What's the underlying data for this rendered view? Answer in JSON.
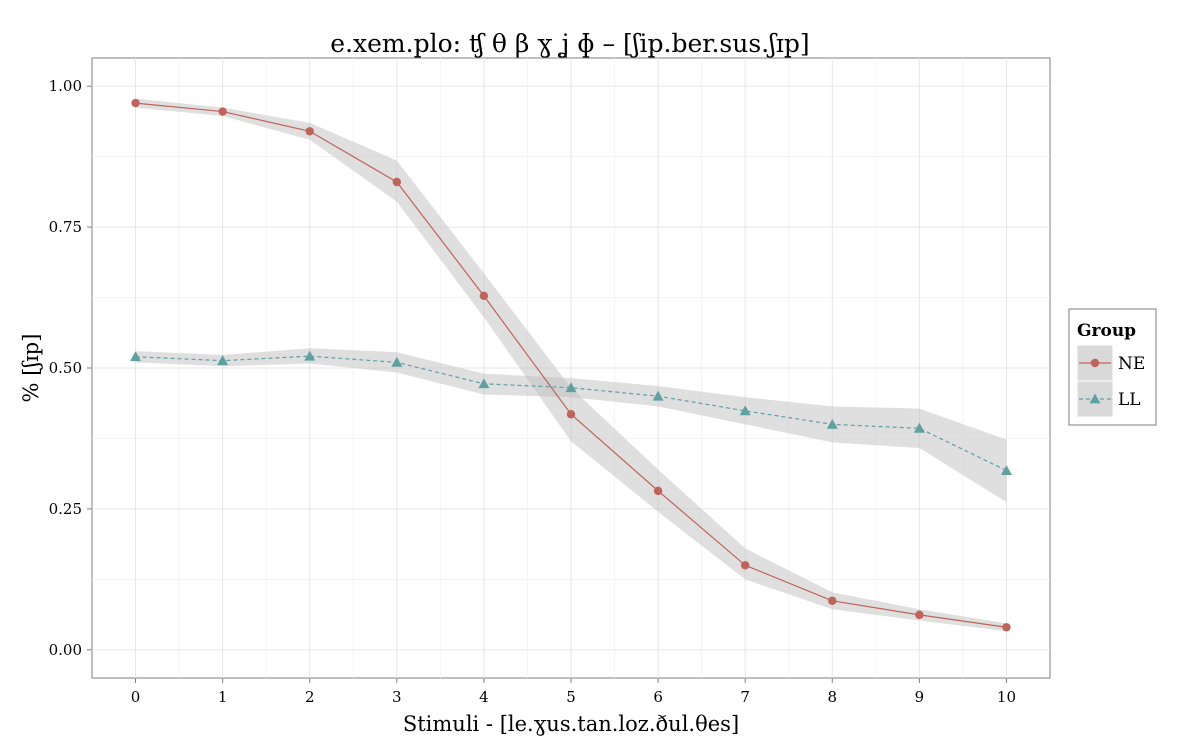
{
  "chart_data": {
    "type": "line",
    "title": "e.xem.plo: ʧ θ β ɣ ʝ ɸ – [ʃip.ber.sus.ʃɪp]",
    "xlabel": "Stimuli - [le.ɣus.tan.loz.ðul.θes]",
    "ylabel": "% [ʃɪp]",
    "x": [
      0,
      1,
      2,
      3,
      4,
      5,
      6,
      7,
      8,
      9,
      10
    ],
    "xlim": [
      -0.5,
      10.5
    ],
    "ylim": [
      -0.05,
      1.05
    ],
    "x_ticks": [
      "0",
      "1",
      "2",
      "3",
      "4",
      "5",
      "6",
      "7",
      "8",
      "9",
      "10"
    ],
    "y_ticks": [
      "0.00",
      "0.25",
      "0.50",
      "0.75",
      "1.00"
    ],
    "grid": true,
    "legend": {
      "title": "Group",
      "position": "right"
    },
    "series": [
      {
        "name": "NE",
        "values": [
          0.97,
          0.955,
          0.92,
          0.83,
          0.628,
          0.418,
          0.282,
          0.15,
          0.087,
          0.062,
          0.04
        ],
        "ci_low": [
          0.962,
          0.947,
          0.905,
          0.795,
          0.59,
          0.37,
          0.245,
          0.125,
          0.072,
          0.052,
          0.033
        ],
        "ci_high": [
          0.978,
          0.962,
          0.935,
          0.868,
          0.668,
          0.465,
          0.32,
          0.18,
          0.102,
          0.072,
          0.047
        ],
        "color": "#C0635B",
        "marker": "circle",
        "line_style": "solid"
      },
      {
        "name": "LL",
        "values": [
          0.52,
          0.513,
          0.521,
          0.51,
          0.472,
          0.465,
          0.45,
          0.424,
          0.4,
          0.393,
          0.318
        ],
        "ci_low": [
          0.51,
          0.503,
          0.508,
          0.492,
          0.453,
          0.448,
          0.432,
          0.4,
          0.368,
          0.358,
          0.262
        ],
        "ci_high": [
          0.53,
          0.523,
          0.535,
          0.528,
          0.49,
          0.482,
          0.468,
          0.448,
          0.432,
          0.428,
          0.373
        ],
        "color": "#5FA1A3",
        "marker": "triangle",
        "line_style": "dashed"
      }
    ],
    "ribbon_color": "#BFBFBF"
  }
}
